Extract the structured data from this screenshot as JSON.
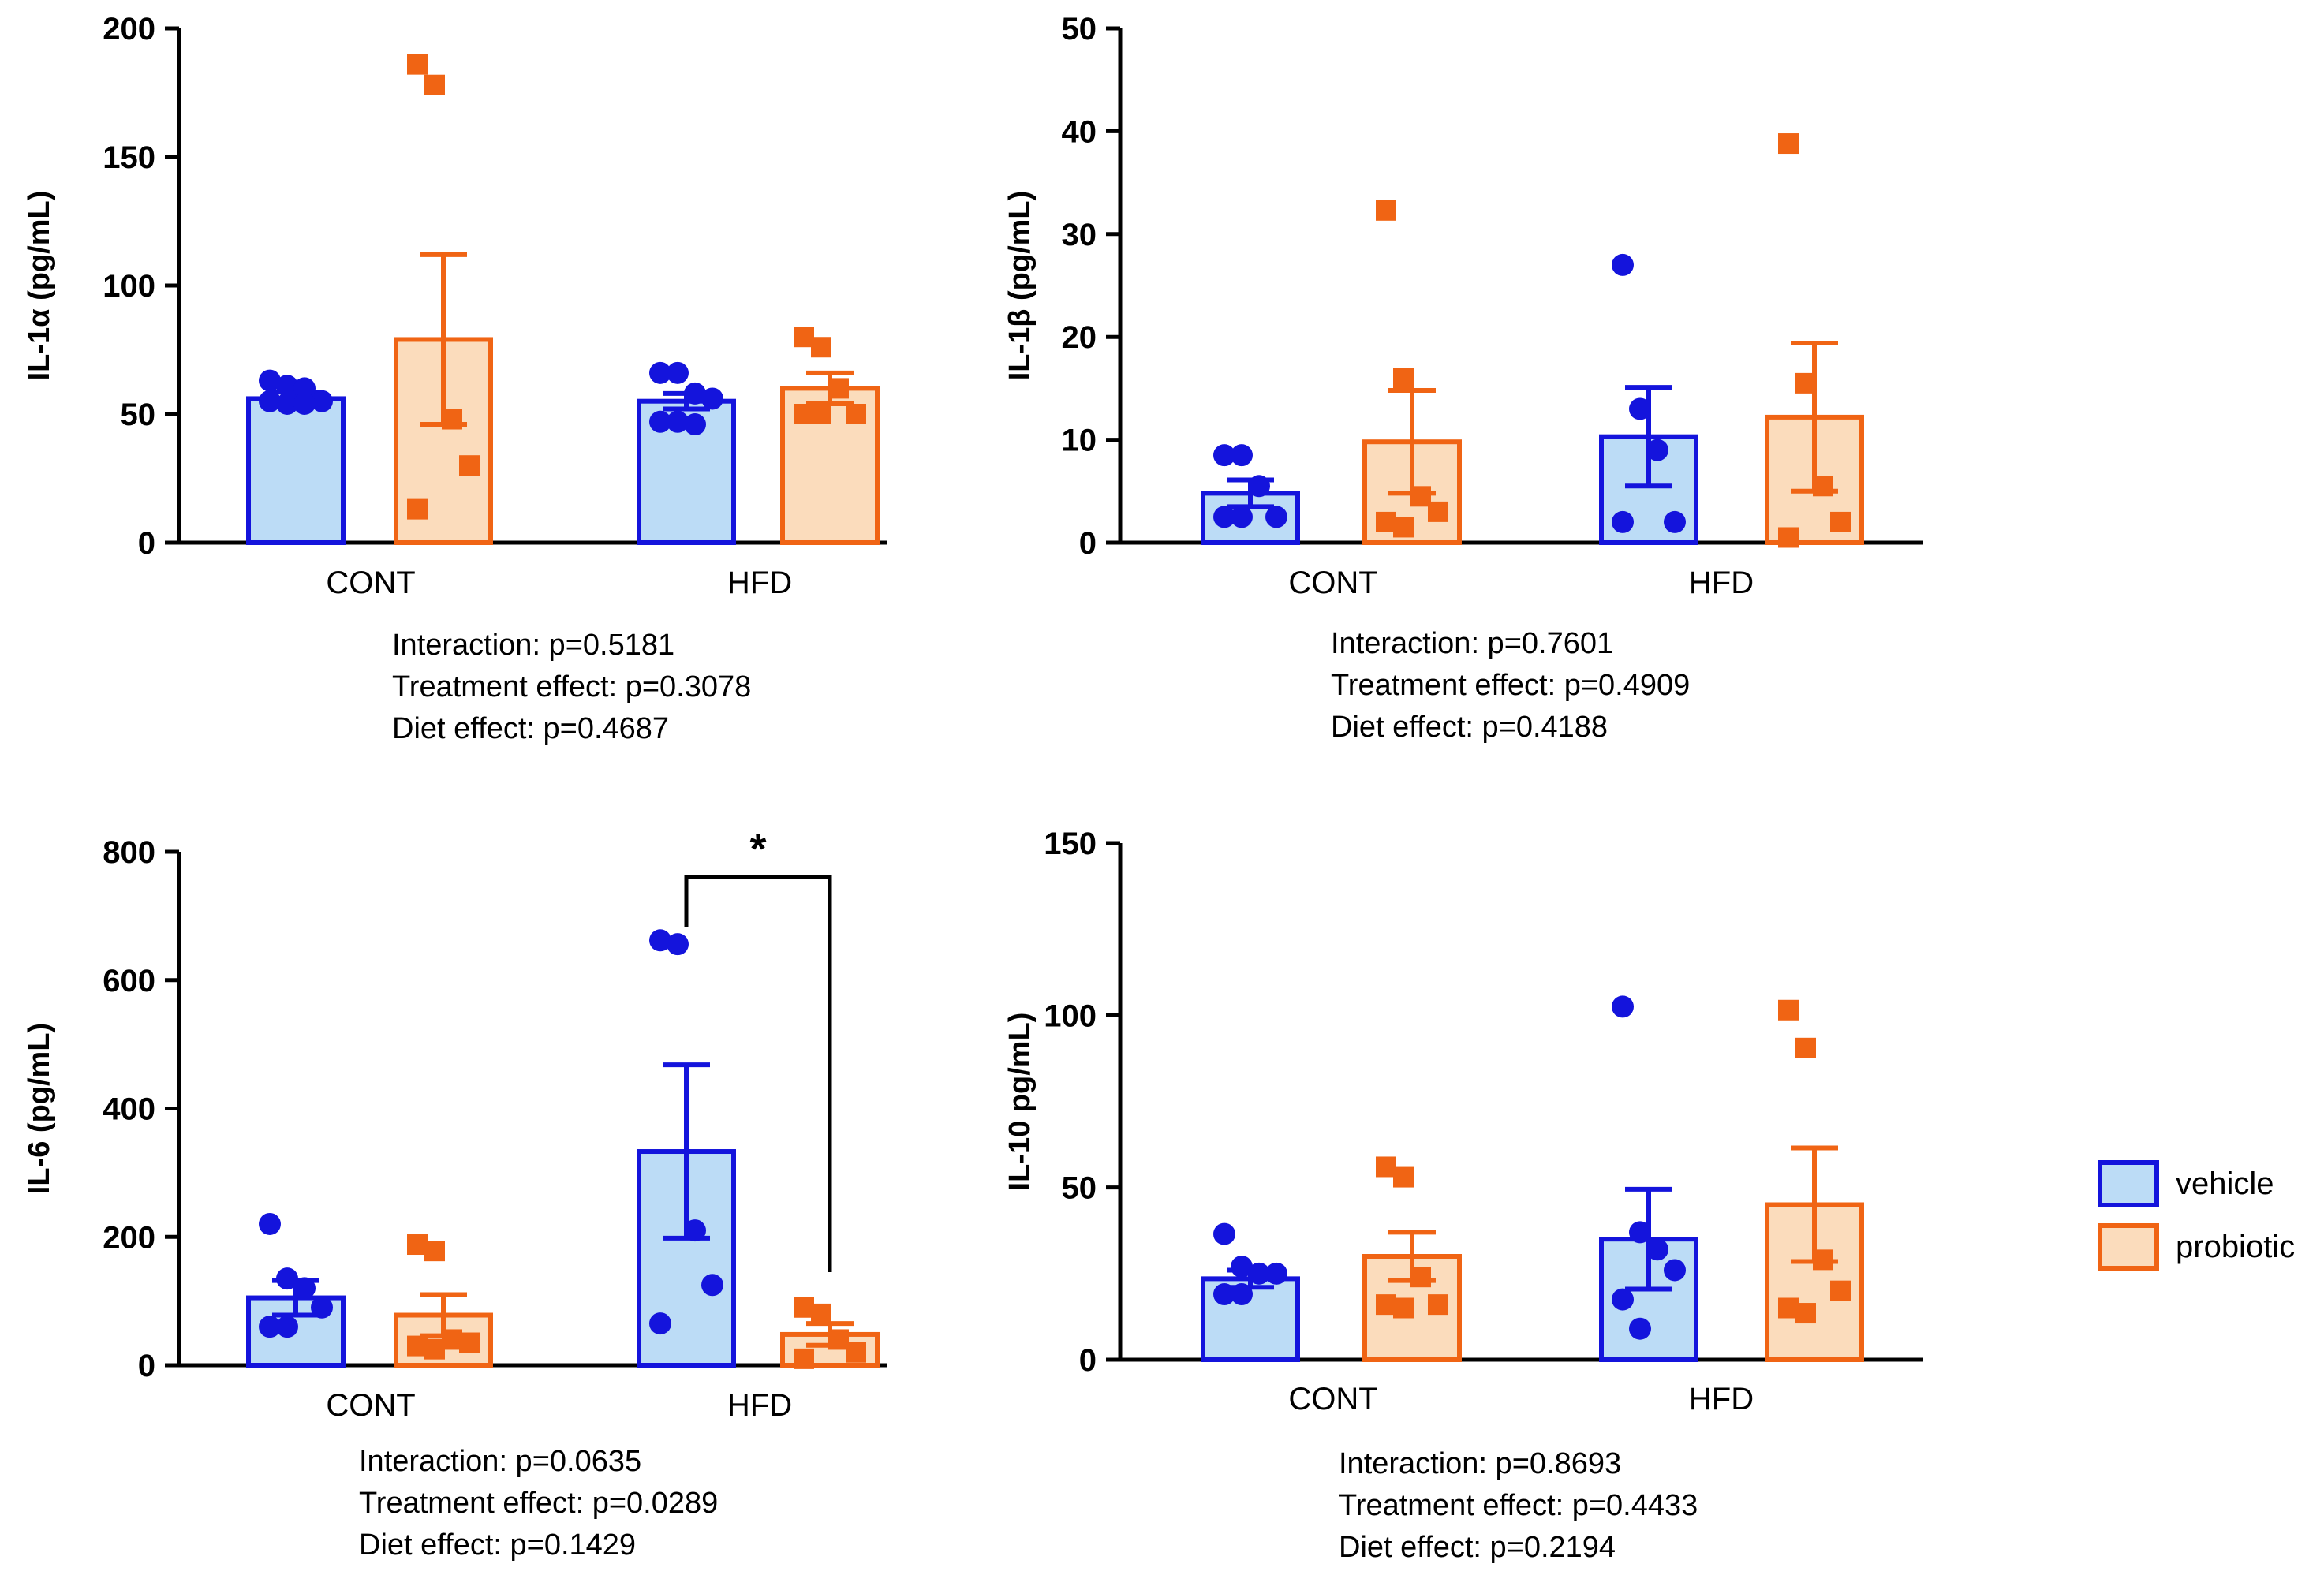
{
  "colors": {
    "vehicle_stroke": "#1414dc",
    "vehicle_fill": "#bcdcf6",
    "probiotic_stroke": "#f06414",
    "probiotic_fill": "#fbdcbc",
    "axis": "#000000"
  },
  "legend": [
    {
      "label": "vehicle",
      "series": "vehicle"
    },
    {
      "label": "probiotic",
      "series": "probiotic"
    }
  ],
  "chart_data": [
    {
      "type": "bar",
      "ylabel": "IL-1α (pg/mL)",
      "ylim": [
        0,
        200
      ],
      "yticks": [
        0,
        50,
        100,
        150,
        200
      ],
      "categories": [
        "CONT",
        "HFD"
      ],
      "series": [
        {
          "name": "vehicle",
          "values": [
            56,
            55
          ],
          "sem": [
            2.5,
            3
          ],
          "points": [
            [
              63,
              61,
              60,
              55,
              55,
              54,
              54
            ],
            [
              66,
              66,
              58,
              56,
              47,
              47,
              46
            ]
          ]
        },
        {
          "name": "probiotic",
          "values": [
            79,
            60
          ],
          "sem": [
            33,
            6
          ],
          "points": [
            [
              186,
              178,
              48,
              30,
              13
            ],
            [
              80,
              76,
              60,
              50,
              50,
              50
            ]
          ]
        }
      ],
      "significance": null,
      "stats": [
        "Interaction: p=0.5181",
        "Treatment effect: p=0.3078",
        "Diet effect: p=0.4687"
      ]
    },
    {
      "type": "bar",
      "ylabel": "IL-1β (pg/mL)",
      "ylim": [
        0,
        50
      ],
      "yticks": [
        0,
        10,
        20,
        30,
        40,
        50
      ],
      "categories": [
        "CONT",
        "HFD"
      ],
      "series": [
        {
          "name": "vehicle",
          "values": [
            4.8,
            10.3
          ],
          "sem": [
            1.3,
            4.8
          ],
          "points": [
            [
              8.5,
              8.5,
              5.5,
              2.5,
              2.5,
              2.5
            ],
            [
              27,
              13,
              9,
              2,
              2
            ]
          ]
        },
        {
          "name": "probiotic",
          "values": [
            9.8,
            12.2
          ],
          "sem": [
            5,
            7.2
          ],
          "points": [
            [
              32.3,
              16,
              4.5,
              3,
              2,
              1.5
            ],
            [
              38.8,
              15.5,
              5.5,
              2,
              0.5
            ]
          ]
        }
      ],
      "significance": null,
      "stats": [
        "Interaction: p=0.7601",
        "Treatment effect: p=0.4909",
        "Diet effect: p=0.4188"
      ]
    },
    {
      "type": "bar",
      "ylabel": "IL-6 (pg/mL)",
      "ylim": [
        0,
        800
      ],
      "yticks": [
        0,
        200,
        400,
        600,
        800
      ],
      "categories": [
        "CONT",
        "HFD"
      ],
      "series": [
        {
          "name": "vehicle",
          "values": [
            105,
            333
          ],
          "sem": [
            27,
            135
          ],
          "points": [
            [
              220,
              135,
              120,
              90,
              60,
              60
            ],
            [
              662,
              656,
              210,
              125,
              65
            ]
          ]
        },
        {
          "name": "probiotic",
          "values": [
            78,
            48
          ],
          "sem": [
            32,
            17
          ],
          "points": [
            [
              188,
              178,
              40,
              35,
              30,
              25
            ],
            [
              90,
              80,
              40,
              20,
              10
            ]
          ]
        }
      ],
      "significance": {
        "category": "HFD",
        "from": "vehicle",
        "to": "probiotic",
        "label": "*",
        "y": 760
      },
      "stats": [
        "Interaction: p=0.0635",
        "Treatment effect: p=0.0289",
        "Diet effect: p=0.1429"
      ]
    },
    {
      "type": "bar",
      "ylabel": "IL-10 pg/mL)",
      "ylim": [
        0,
        150
      ],
      "yticks": [
        0,
        50,
        100,
        150
      ],
      "categories": [
        "CONT",
        "HFD"
      ],
      "series": [
        {
          "name": "vehicle",
          "values": [
            23.5,
            35
          ],
          "sem": [
            2.5,
            14.5
          ],
          "points": [
            [
              36.5,
              27,
              25,
              25,
              19,
              19
            ],
            [
              102.5,
              37,
              32,
              26,
              17.5,
              9
            ]
          ]
        },
        {
          "name": "probiotic",
          "values": [
            30,
            45
          ],
          "sem": [
            7,
            16.5
          ],
          "points": [
            [
              56,
              53,
              24,
              16,
              16,
              15
            ],
            [
              101.5,
              90.5,
              29,
              20,
              15,
              13.5
            ]
          ]
        }
      ],
      "significance": null,
      "stats": [
        "Interaction: p=0.8693",
        "Treatment effect: p=0.4433",
        "Diet effect: p=0.2194"
      ]
    }
  ]
}
